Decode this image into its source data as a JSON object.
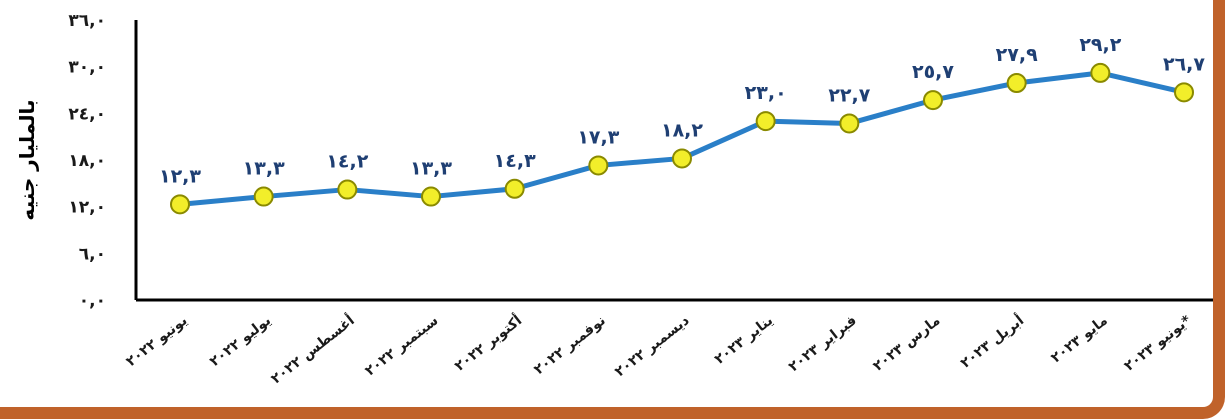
{
  "chart_data": {
    "type": "line",
    "ylabel": "بالمليار جنيه",
    "ylim": [
      0,
      36
    ],
    "yticks": [
      0,
      6,
      12,
      18,
      24,
      30,
      36
    ],
    "ytick_labels": [
      "٠,٠",
      "٦,٠",
      "١٢,٠",
      "١٨,٠",
      "٢٤,٠",
      "٣٠,٠",
      "٣٦,٠"
    ],
    "categories": [
      "يونيو ٢٠٢٢",
      "يوليو ٢٠٢٢",
      "أغسطس ٢٠٢٢",
      "سبتمبر ٢٠٢٢",
      "أكتوبر ٢٠٢٢",
      "نوفمبر ٢٠٢٢",
      "ديسمبر ٢٠٢٢",
      "يناير ٢٠٢٣",
      "فبراير ٢٠٢٣",
      "مارس ٢٠٢٣",
      "أبريل ٢٠٢٣",
      "مايو ٢٠٢٣",
      "يونيو ٢٠٢٣*"
    ],
    "values": [
      12.3,
      13.3,
      14.2,
      13.3,
      14.3,
      17.3,
      18.2,
      23.0,
      22.7,
      25.7,
      27.9,
      29.2,
      26.7
    ],
    "value_labels": [
      "١٢,٣",
      "١٣,٣",
      "١٤,٢",
      "١٣,٣",
      "١٤,٣",
      "١٧,٣",
      "١٨,٢",
      "٢٣,٠",
      "٢٢,٧",
      "٢٥,٧",
      "٢٧,٩",
      "٢٩,٢",
      "٢٦,٧"
    ],
    "grid": false,
    "legend": "none",
    "colors": {
      "line": "#2a7fc8",
      "marker_fill": "#f2ee2a",
      "marker_stroke": "#8a8a00",
      "label": "#1f3f73",
      "frame": "#c0622a"
    }
  }
}
